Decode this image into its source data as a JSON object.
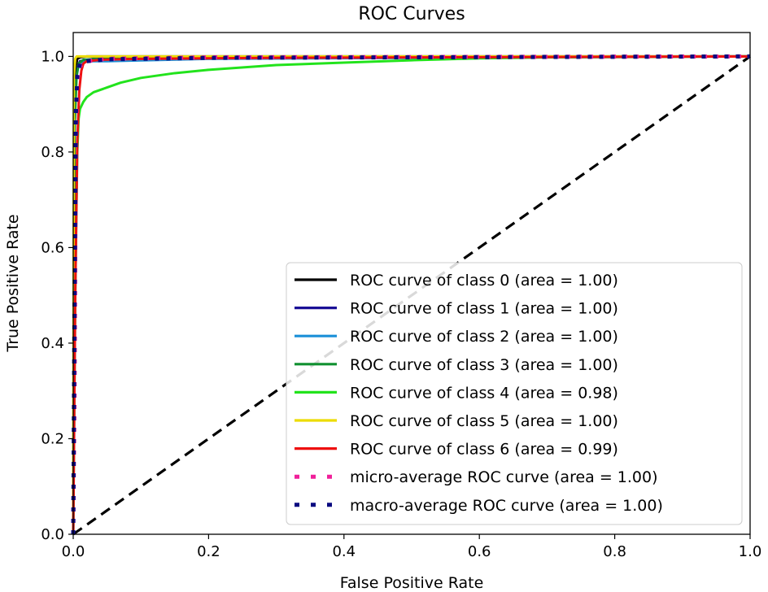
{
  "chart_data": {
    "type": "line",
    "title": "ROC Curves",
    "xlabel": "False Positive Rate",
    "ylabel": "True Positive Rate",
    "xlim": [
      0.0,
      1.0
    ],
    "ylim": [
      0.0,
      1.05
    ],
    "xticks": [
      0.0,
      0.2,
      0.4,
      0.6,
      0.8,
      1.0
    ],
    "yticks": [
      0.0,
      0.2,
      0.4,
      0.6,
      0.8,
      1.0
    ],
    "xtick_labels": [
      "0.0",
      "0.2",
      "0.4",
      "0.6",
      "0.8",
      "1.0"
    ],
    "ytick_labels": [
      "0.0",
      "0.2",
      "0.4",
      "0.6",
      "0.8",
      "1.0"
    ],
    "legend_position": "lower-right",
    "series": [
      {
        "name": "ROC curve of class 0 (area = 1.00)",
        "color": "#000000",
        "style": "solid",
        "x": [
          0,
          0.002,
          0.004,
          0.006,
          0.01,
          0.02,
          0.05,
          1.0
        ],
        "y": [
          0,
          0.9,
          0.98,
          0.995,
          0.998,
          1.0,
          1.0,
          1.0
        ]
      },
      {
        "name": "ROC curve of class 1 (area = 1.00)",
        "color": "#1a0f96",
        "style": "solid",
        "x": [
          0,
          0.002,
          0.004,
          0.007,
          0.01,
          0.03,
          0.1,
          1.0
        ],
        "y": [
          0,
          0.85,
          0.95,
          0.98,
          0.99,
          0.995,
          0.998,
          1.0
        ]
      },
      {
        "name": "ROC curve of class 2 (area = 1.00)",
        "color": "#1a8fd8",
        "style": "solid",
        "x": [
          0,
          0.002,
          0.004,
          0.007,
          0.01,
          0.02,
          0.05,
          0.2,
          1.0
        ],
        "y": [
          0,
          0.85,
          0.95,
          0.975,
          0.985,
          0.99,
          0.99,
          0.995,
          1.0
        ]
      },
      {
        "name": "ROC curve of class 3 (area = 1.00)",
        "color": "#109030",
        "style": "solid",
        "x": [
          0,
          0.002,
          0.005,
          0.008,
          0.015,
          0.05,
          0.2,
          1.0
        ],
        "y": [
          0,
          0.85,
          0.96,
          0.985,
          0.993,
          0.996,
          0.998,
          1.0
        ]
      },
      {
        "name": "ROC curve of class 4 (area = 0.98)",
        "color": "#22e31c",
        "style": "solid",
        "x": [
          0,
          0.003,
          0.006,
          0.008,
          0.01,
          0.015,
          0.02,
          0.03,
          0.05,
          0.07,
          0.1,
          0.15,
          0.2,
          0.3,
          0.4,
          0.5,
          0.6,
          0.7,
          1.0
        ],
        "y": [
          0,
          0.5,
          0.8,
          0.87,
          0.89,
          0.905,
          0.915,
          0.925,
          0.935,
          0.945,
          0.955,
          0.965,
          0.972,
          0.982,
          0.987,
          0.992,
          0.996,
          0.998,
          1.0
        ]
      },
      {
        "name": "ROC curve of class 5 (area = 1.00)",
        "color": "#ecdc00",
        "style": "solid",
        "x": [
          0,
          0.001,
          0.003,
          0.005,
          1.0
        ],
        "y": [
          0,
          0.96,
          0.995,
          1.0,
          1.0
        ]
      },
      {
        "name": "ROC curve of class 6 (area = 0.99)",
        "color": "#ee1010",
        "style": "solid",
        "x": [
          0,
          0.003,
          0.006,
          0.009,
          0.012,
          0.015,
          0.02,
          0.04,
          0.1,
          0.3,
          1.0
        ],
        "y": [
          0,
          0.5,
          0.82,
          0.93,
          0.97,
          0.985,
          0.99,
          0.993,
          0.995,
          0.997,
          1.0
        ]
      },
      {
        "name": "micro-average ROC curve (area = 1.00)",
        "color": "#f0209a",
        "style": "dotted",
        "x": [
          0,
          0.002,
          0.004,
          0.006,
          0.01,
          0.02,
          0.05,
          0.2,
          1.0
        ],
        "y": [
          0,
          0.3,
          0.85,
          0.95,
          0.98,
          0.99,
          0.995,
          0.998,
          1.0
        ]
      },
      {
        "name": "macro-average ROC curve (area = 1.00)",
        "color": "#0a0a80",
        "style": "dotted",
        "x": [
          0,
          0.002,
          0.004,
          0.006,
          0.01,
          0.02,
          0.05,
          0.2,
          1.0
        ],
        "y": [
          0,
          0.5,
          0.88,
          0.96,
          0.985,
          0.99,
          0.994,
          0.997,
          1.0
        ]
      }
    ],
    "reference_line": {
      "x": [
        0,
        1
      ],
      "y": [
        0,
        1
      ],
      "color": "#000000",
      "style": "dashed"
    }
  }
}
